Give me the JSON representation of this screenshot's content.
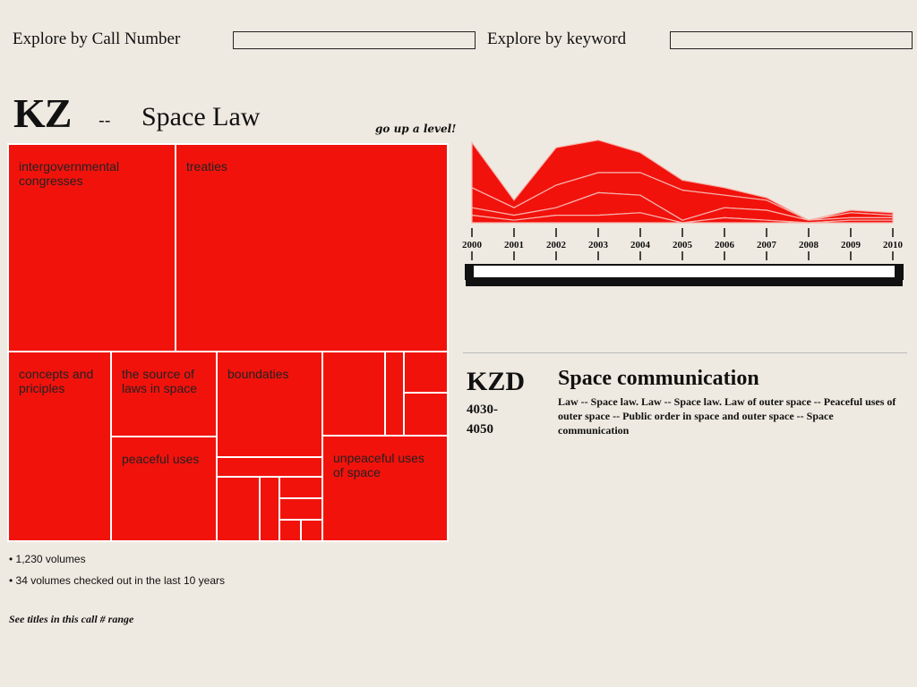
{
  "search": {
    "call_label": "Explore by Call Number",
    "call_value": "",
    "keyword_label": "Explore by keyword",
    "keyword_value": ""
  },
  "header": {
    "code": "KZ",
    "separator": "--",
    "title": "Space Law",
    "up_link": "go up a level!"
  },
  "treemap": {
    "tiles": [
      {
        "label": "intergovernmental congresses"
      },
      {
        "label": "treaties"
      },
      {
        "label": "concepts and priciples"
      },
      {
        "label": "the source of laws in space"
      },
      {
        "label": "boundaties"
      },
      {
        "label": "peaceful uses"
      },
      {
        "label": "unpeaceful uses of space"
      }
    ],
    "color": "#f2120c"
  },
  "stats": {
    "volumes": "• 1,230 volumes",
    "checked_out": "• 34 volumes checked out in the last 10 years"
  },
  "links": {
    "see_titles": "See titles in this call # range"
  },
  "timeline": {
    "range_start": 2000,
    "range_end": 2010
  },
  "detail": {
    "code": "KZD",
    "range": "4030- 4050",
    "title": "Space communication",
    "description": "Law -- Space law. Law -- Space law. Law of outer space -- Peaceful uses of outer space -- Public order in space and outer space -- Space communication"
  },
  "chart_data": {
    "type": "area",
    "x": [
      "2000",
      "2001",
      "2002",
      "2003",
      "2004",
      "2005",
      "2006",
      "2007",
      "2008",
      "2009",
      "2010"
    ],
    "series": [
      {
        "values": [
          3,
          1,
          3,
          3,
          4,
          0,
          2,
          1,
          0,
          1,
          1
        ]
      },
      {
        "values": [
          3,
          2,
          3,
          9,
          7,
          1,
          4,
          4,
          1,
          1,
          1
        ]
      },
      {
        "values": [
          8,
          3,
          9,
          8,
          9,
          12,
          5,
          4,
          0,
          2,
          1
        ]
      },
      {
        "values": [
          18,
          3,
          15,
          13,
          8,
          4,
          3,
          1,
          0,
          1,
          1
        ]
      }
    ],
    "ylim": [
      0,
      40
    ],
    "color": "#f2120c",
    "grid": false
  }
}
